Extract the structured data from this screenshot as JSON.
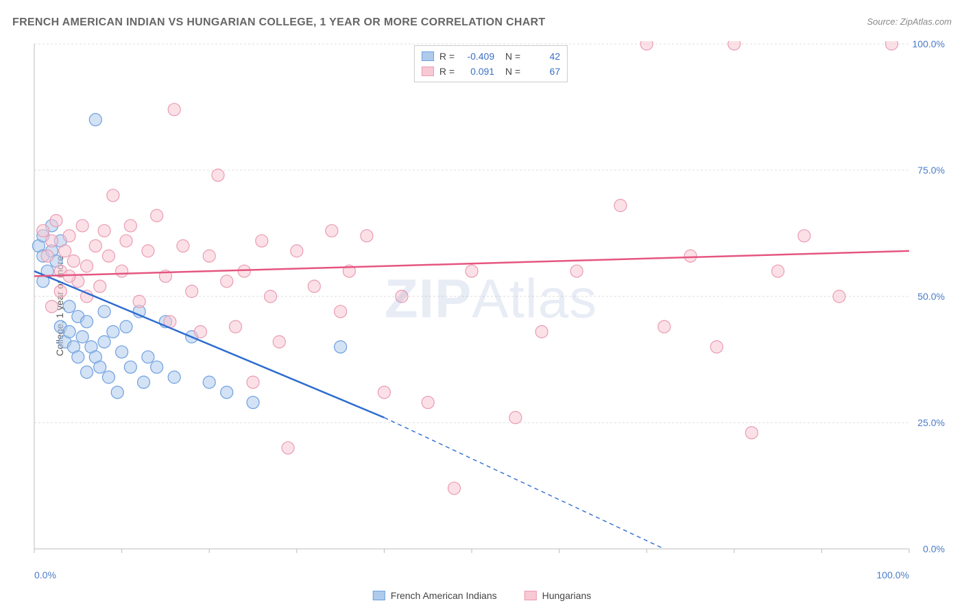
{
  "title": "FRENCH AMERICAN INDIAN VS HUNGARIAN COLLEGE, 1 YEAR OR MORE CORRELATION CHART",
  "source": "Source: ZipAtlas.com",
  "ylabel": "College, 1 year or more",
  "watermark": {
    "part1": "ZIP",
    "part2": "Atlas"
  },
  "chart": {
    "type": "scatter-correlation",
    "background_color": "#ffffff",
    "grid_color": "#dddddd",
    "axis_color": "#bbbbbb",
    "tick_label_color": "#4a7ac7",
    "tick_fontsize": 14,
    "title_fontsize": 16,
    "title_color": "#666666",
    "xlim": [
      0,
      100
    ],
    "ylim": [
      0,
      100
    ],
    "x_ticks": [
      0,
      10,
      20,
      30,
      40,
      50,
      60,
      70,
      80,
      90,
      100
    ],
    "y_ticks": [
      0,
      25,
      50,
      75,
      100
    ],
    "x_tick_labels": {
      "0": "0.0%",
      "100": "100.0%"
    },
    "y_tick_labels": {
      "0": "0.0%",
      "25": "25.0%",
      "50": "50.0%",
      "75": "75.0%",
      "100": "100.0%"
    },
    "marker_radius": 9,
    "marker_opacity": 0.55,
    "line_width": 2.5
  },
  "series": [
    {
      "key": "french_american_indians",
      "name": "French American Indians",
      "color_fill": "#aecbeb",
      "color_stroke": "#6d9fe0",
      "line_color": "#2d6cd0",
      "R": "-0.409",
      "N": "42",
      "trend": {
        "x1": 0,
        "y1": 55,
        "x2": 40,
        "y2": 26,
        "extend_to_x": 72,
        "extend_to_y": 0
      },
      "points": [
        [
          0.5,
          60
        ],
        [
          1,
          62
        ],
        [
          1,
          58
        ],
        [
          1.5,
          55
        ],
        [
          1,
          53
        ],
        [
          2,
          64
        ],
        [
          2,
          59
        ],
        [
          2.5,
          57
        ],
        [
          3,
          61
        ],
        [
          3,
          44
        ],
        [
          3.5,
          41
        ],
        [
          4,
          48
        ],
        [
          4,
          43
        ],
        [
          4.5,
          40
        ],
        [
          5,
          46
        ],
        [
          5,
          38
        ],
        [
          5.5,
          42
        ],
        [
          6,
          45
        ],
        [
          6,
          35
        ],
        [
          6.5,
          40
        ],
        [
          7,
          85
        ],
        [
          7,
          38
        ],
        [
          7.5,
          36
        ],
        [
          8,
          47
        ],
        [
          8,
          41
        ],
        [
          8.5,
          34
        ],
        [
          9,
          43
        ],
        [
          9.5,
          31
        ],
        [
          10,
          39
        ],
        [
          10.5,
          44
        ],
        [
          11,
          36
        ],
        [
          12,
          47
        ],
        [
          12.5,
          33
        ],
        [
          13,
          38
        ],
        [
          14,
          36
        ],
        [
          15,
          45
        ],
        [
          16,
          34
        ],
        [
          18,
          42
        ],
        [
          20,
          33
        ],
        [
          22,
          31
        ],
        [
          25,
          29
        ],
        [
          35,
          40
        ]
      ]
    },
    {
      "key": "hungarians",
      "name": "Hungarians",
      "color_fill": "#f7c9d4",
      "color_stroke": "#ea9ab2",
      "line_color": "#e55580",
      "R": "0.091",
      "N": "67",
      "trend": {
        "x1": 0,
        "y1": 54,
        "x2": 100,
        "y2": 59
      },
      "points": [
        [
          1,
          63
        ],
        [
          1.5,
          58
        ],
        [
          2,
          61
        ],
        [
          2.5,
          65
        ],
        [
          3,
          55
        ],
        [
          3.5,
          59
        ],
        [
          4,
          62
        ],
        [
          4.5,
          57
        ],
        [
          5,
          53
        ],
        [
          5.5,
          64
        ],
        [
          6,
          56
        ],
        [
          7,
          60
        ],
        [
          7.5,
          52
        ],
        [
          8,
          63
        ],
        [
          8.5,
          58
        ],
        [
          9,
          70
        ],
        [
          10,
          55
        ],
        [
          10.5,
          61
        ],
        [
          11,
          64
        ],
        [
          12,
          49
        ],
        [
          13,
          59
        ],
        [
          14,
          66
        ],
        [
          15,
          54
        ],
        [
          15.5,
          45
        ],
        [
          16,
          87
        ],
        [
          17,
          60
        ],
        [
          18,
          51
        ],
        [
          19,
          43
        ],
        [
          20,
          58
        ],
        [
          21,
          74
        ],
        [
          22,
          53
        ],
        [
          23,
          44
        ],
        [
          24,
          55
        ],
        [
          25,
          33
        ],
        [
          26,
          61
        ],
        [
          27,
          50
        ],
        [
          28,
          41
        ],
        [
          29,
          20
        ],
        [
          30,
          59
        ],
        [
          32,
          52
        ],
        [
          34,
          63
        ],
        [
          35,
          47
        ],
        [
          36,
          55
        ],
        [
          38,
          62
        ],
        [
          40,
          31
        ],
        [
          42,
          50
        ],
        [
          45,
          29
        ],
        [
          48,
          12
        ],
        [
          50,
          55
        ],
        [
          55,
          26
        ],
        [
          58,
          43
        ],
        [
          62,
          55
        ],
        [
          67,
          68
        ],
        [
          70,
          100
        ],
        [
          72,
          44
        ],
        [
          75,
          58
        ],
        [
          78,
          40
        ],
        [
          80,
          100
        ],
        [
          82,
          23
        ],
        [
          85,
          55
        ],
        [
          88,
          62
        ],
        [
          92,
          50
        ],
        [
          98,
          100
        ],
        [
          2,
          48
        ],
        [
          3,
          51
        ],
        [
          4,
          54
        ],
        [
          6,
          50
        ]
      ]
    }
  ],
  "bottom_legend": [
    {
      "swatch_fill": "#aecbeb",
      "swatch_stroke": "#6d9fe0",
      "label": "French American Indians"
    },
    {
      "swatch_fill": "#f7c9d4",
      "swatch_stroke": "#ea9ab2",
      "label": "Hungarians"
    }
  ]
}
